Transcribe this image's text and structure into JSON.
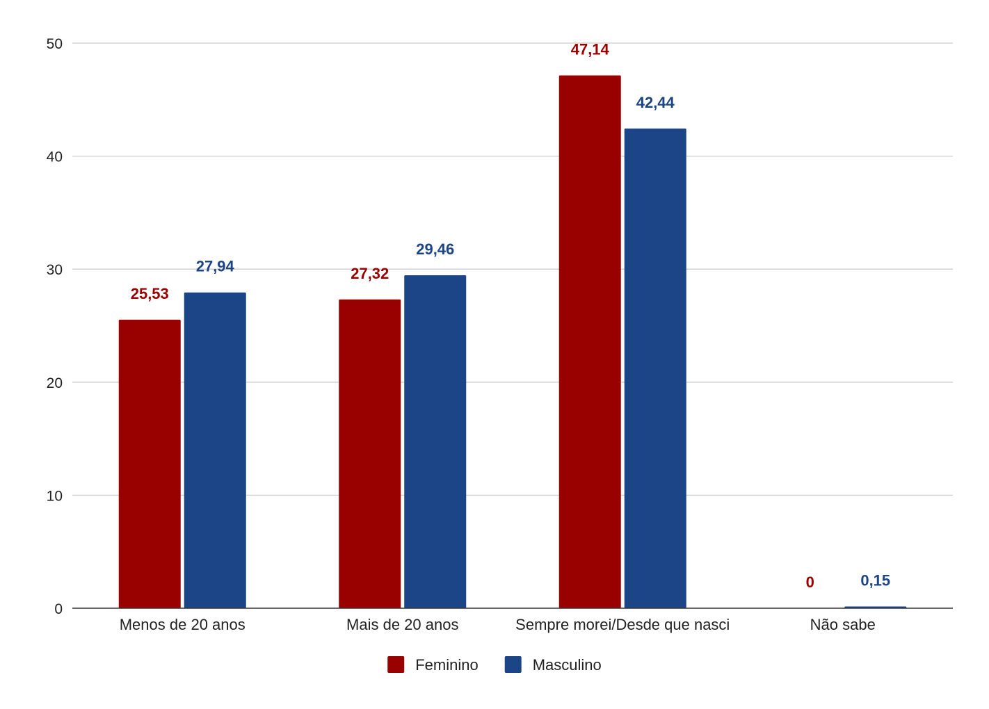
{
  "chart_data": {
    "type": "bar",
    "categories": [
      "Menos de 20 anos",
      "Mais de 20 anos",
      "Sempre morei/Desde que nasci",
      "Não sabe"
    ],
    "series": [
      {
        "name": "Feminino",
        "color": "#990000",
        "values": [
          25.53,
          27.32,
          47.14,
          0
        ],
        "labels": [
          "25,53",
          "27,32",
          "47,14",
          "0"
        ]
      },
      {
        "name": "Masculino",
        "color": "#1c4587",
        "values": [
          27.94,
          29.46,
          42.44,
          0.15
        ],
        "labels": [
          "27,94",
          "29,46",
          "42,44",
          "0,15"
        ]
      }
    ],
    "title": "",
    "xlabel": "",
    "ylabel": "",
    "ylim": [
      0,
      50
    ],
    "yticks": [
      0,
      10,
      20,
      30,
      40,
      50
    ],
    "grid": true,
    "legend_position": "bottom-center"
  }
}
